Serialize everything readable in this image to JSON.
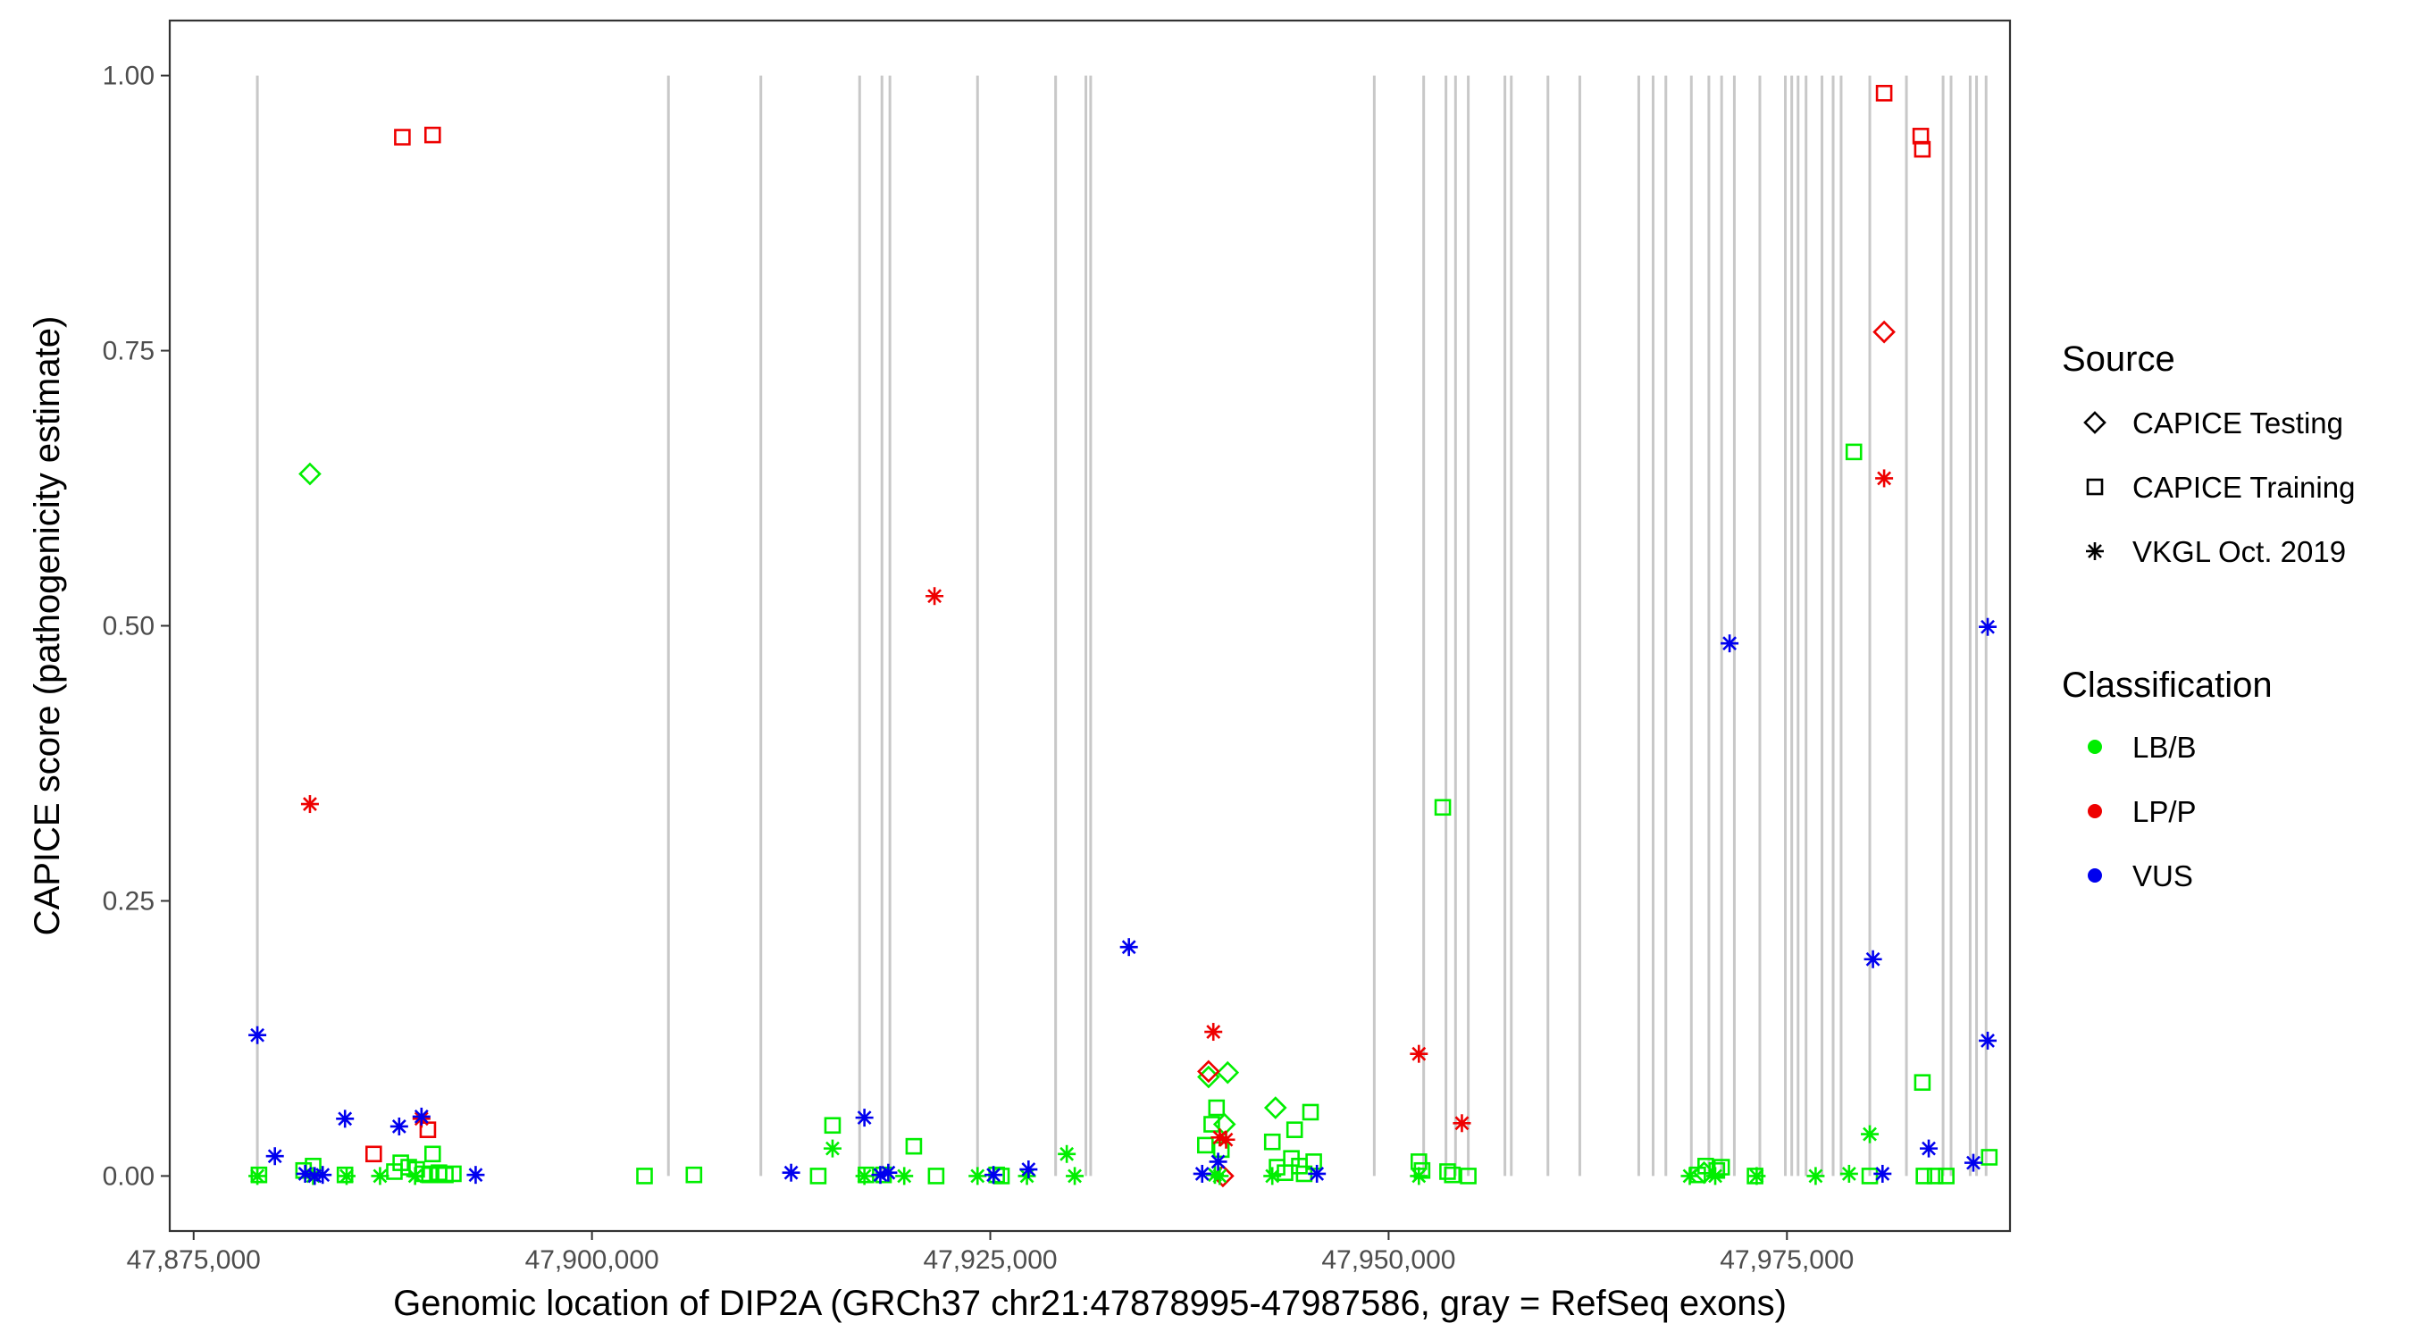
{
  "chart_data": {
    "type": "scatter",
    "title": "",
    "xlabel": "Genomic location of DIP2A (GRCh37 chr21:47878995-47987586, gray = RefSeq exons)",
    "ylabel": "CAPICE score (pathogenicity estimate)",
    "xlim": [
      47873500,
      47989000
    ],
    "ylim": [
      -0.05,
      1.05
    ],
    "x_ticks": [
      47875000,
      47900000,
      47925000,
      47950000,
      47975000
    ],
    "x_tick_labels": [
      "47,875,000",
      "47,900,000",
      "47,925,000",
      "47,950,000",
      "47,975,000"
    ],
    "y_ticks": [
      0,
      0.25,
      0.5,
      0.75,
      1.0
    ],
    "y_tick_labels": [
      "0.00",
      "0.25",
      "0.50",
      "0.75",
      "1.00"
    ],
    "grid": false,
    "exon_color": "#c8c8c8",
    "exon_positions": [
      47879000,
      47904800,
      47910600,
      47916800,
      47918200,
      47918700,
      47924200,
      47929100,
      47931000,
      47931300,
      47949100,
      47952200,
      47953600,
      47954200,
      47955000,
      47957300,
      47957700,
      47960000,
      47962000,
      47965700,
      47966600,
      47967400,
      47969000,
      47970100,
      47970900,
      47971700,
      47973300,
      47974900,
      47975300,
      47975700,
      47976200,
      47977200,
      47977900,
      47978400,
      47980200,
      47982500,
      47984800,
      47985300,
      47986500,
      47986900,
      47987500
    ],
    "legend": {
      "position": "right",
      "source_title": "Source",
      "source_entries": [
        {
          "label": "CAPICE Testing",
          "shape": "diamond"
        },
        {
          "label": "CAPICE Training",
          "shape": "square"
        },
        {
          "label": "VKGL Oct. 2019",
          "shape": "asterisk"
        }
      ],
      "class_title": "Classification",
      "class_entries": [
        {
          "label": "LB/B",
          "color": "#00ee00"
        },
        {
          "label": "LP/P",
          "color": "#ee0000"
        },
        {
          "label": "VUS",
          "color": "#0000ee"
        }
      ]
    },
    "series": [
      {
        "name": "CAPICE Testing LB/B",
        "source": "CAPICE Testing",
        "classification": "LB/B",
        "color": "#00ee00",
        "shape": "diamond",
        "points": [
          [
            47882300,
            0.638
          ],
          [
            47939900,
            0.094
          ],
          [
            47938700,
            0.09
          ],
          [
            47939700,
            0.047
          ],
          [
            47942900,
            0.062
          ],
          [
            47969800,
            0.003
          ]
        ]
      },
      {
        "name": "CAPICE Testing LP/P",
        "source": "CAPICE Testing",
        "classification": "LP/P",
        "color": "#ee0000",
        "shape": "diamond",
        "points": [
          [
            47981100,
            0.767
          ],
          [
            47938700,
            0.095
          ],
          [
            47939600,
            0.0
          ]
        ]
      },
      {
        "name": "CAPICE Testing VUS",
        "source": "CAPICE Testing",
        "classification": "VUS",
        "color": "#0000ee",
        "shape": "diamond",
        "points": []
      },
      {
        "name": "CAPICE Training LB/B",
        "source": "CAPICE Training",
        "classification": "LB/B",
        "color": "#00ee00",
        "shape": "square",
        "points": [
          [
            47879100,
            0.001
          ],
          [
            47881900,
            0.005
          ],
          [
            47882500,
            0.009
          ],
          [
            47884500,
            0.001
          ],
          [
            47887600,
            0.004
          ],
          [
            47888000,
            0.012
          ],
          [
            47888500,
            0.008
          ],
          [
            47889000,
            0.006
          ],
          [
            47889400,
            0.002
          ],
          [
            47889800,
            0.001
          ],
          [
            47890000,
            0.02
          ],
          [
            47890400,
            0.003
          ],
          [
            47890800,
            0.001
          ],
          [
            47891300,
            0.002
          ],
          [
            47903300,
            0.0
          ],
          [
            47906400,
            0.001
          ],
          [
            47914200,
            0.0
          ],
          [
            47915100,
            0.046
          ],
          [
            47917200,
            0.001
          ],
          [
            47918300,
            0.001
          ],
          [
            47920200,
            0.027
          ],
          [
            47921600,
            0.0
          ],
          [
            47925400,
            0.001
          ],
          [
            47925700,
            0.0
          ],
          [
            47938500,
            0.028
          ],
          [
            47938900,
            0.047
          ],
          [
            47939200,
            0.062
          ],
          [
            47939500,
            0.024
          ],
          [
            47942700,
            0.031
          ],
          [
            47943000,
            0.008
          ],
          [
            47943500,
            0.003
          ],
          [
            47943900,
            0.016
          ],
          [
            47944100,
            0.042
          ],
          [
            47944400,
            0.009
          ],
          [
            47944700,
            0.002
          ],
          [
            47945100,
            0.058
          ],
          [
            47945300,
            0.013
          ],
          [
            47951900,
            0.013
          ],
          [
            47952100,
            0.005
          ],
          [
            47953400,
            0.335
          ],
          [
            47953700,
            0.004
          ],
          [
            47954000,
            0.001
          ],
          [
            47955000,
            0.0
          ],
          [
            47969400,
            0.001
          ],
          [
            47969900,
            0.009
          ],
          [
            47970600,
            0.005
          ],
          [
            47970900,
            0.008
          ],
          [
            47973000,
            0.0
          ],
          [
            47979200,
            0.658
          ],
          [
            47980200,
            0.0
          ],
          [
            47983500,
            0.085
          ],
          [
            47983600,
            0.0
          ],
          [
            47984300,
            0.0
          ],
          [
            47985000,
            0.0
          ],
          [
            47987700,
            0.017
          ]
        ]
      },
      {
        "name": "CAPICE Training LP/P",
        "source": "CAPICE Training",
        "classification": "LP/P",
        "color": "#ee0000",
        "shape": "square",
        "points": [
          [
            47888100,
            0.944
          ],
          [
            47890000,
            0.946
          ],
          [
            47886300,
            0.02
          ],
          [
            47889700,
            0.042
          ],
          [
            47981100,
            0.984
          ],
          [
            47983400,
            0.945
          ],
          [
            47983500,
            0.933
          ]
        ]
      },
      {
        "name": "CAPICE Training VUS",
        "source": "CAPICE Training",
        "classification": "VUS",
        "color": "#0000ee",
        "shape": "square",
        "points": []
      },
      {
        "name": "VKGL Oct. 2019 LB/B",
        "source": "VKGL Oct. 2019",
        "classification": "LB/B",
        "color": "#00ee00",
        "shape": "asterisk",
        "points": [
          [
            47879000,
            0.0
          ],
          [
            47882500,
            0.0
          ],
          [
            47884600,
            0.0
          ],
          [
            47886700,
            0.0
          ],
          [
            47888900,
            0.0
          ],
          [
            47915100,
            0.025
          ],
          [
            47917100,
            0.0
          ],
          [
            47919600,
            0.0
          ],
          [
            47924200,
            0.0
          ],
          [
            47927300,
            0.0
          ],
          [
            47929800,
            0.02
          ],
          [
            47930300,
            0.0
          ],
          [
            47939100,
            0.001
          ],
          [
            47939400,
            0.0
          ],
          [
            47942700,
            0.0
          ],
          [
            47951900,
            0.0
          ],
          [
            47968900,
            0.0
          ],
          [
            47970500,
            0.0
          ],
          [
            47973100,
            0.0
          ],
          [
            47976800,
            0.0
          ],
          [
            47978900,
            0.002
          ],
          [
            47980200,
            0.038
          ]
        ]
      },
      {
        "name": "VKGL Oct. 2019 LP/P",
        "source": "VKGL Oct. 2019",
        "classification": "LP/P",
        "color": "#ee0000",
        "shape": "asterisk",
        "points": [
          [
            47882300,
            0.338
          ],
          [
            47889300,
            0.052
          ],
          [
            47921500,
            0.527
          ],
          [
            47939000,
            0.131
          ],
          [
            47939400,
            0.035
          ],
          [
            47939800,
            0.033
          ],
          [
            47951900,
            0.111
          ],
          [
            47954600,
            0.048
          ],
          [
            47981100,
            0.634
          ]
        ]
      },
      {
        "name": "VKGL Oct. 2019 VUS",
        "source": "VKGL Oct. 2019",
        "classification": "VUS",
        "color": "#0000ee",
        "shape": "asterisk",
        "points": [
          [
            47879000,
            0.128
          ],
          [
            47880100,
            0.018
          ],
          [
            47882000,
            0.002
          ],
          [
            47882600,
            0.0
          ],
          [
            47883100,
            0.001
          ],
          [
            47884500,
            0.052
          ],
          [
            47887900,
            0.045
          ],
          [
            47889300,
            0.054
          ],
          [
            47892700,
            0.001
          ],
          [
            47912500,
            0.003
          ],
          [
            47917100,
            0.053
          ],
          [
            47918100,
            0.001
          ],
          [
            47918600,
            0.003
          ],
          [
            47925200,
            0.001
          ],
          [
            47927400,
            0.006
          ],
          [
            47933700,
            0.208
          ],
          [
            47938300,
            0.002
          ],
          [
            47939300,
            0.013
          ],
          [
            47945500,
            0.002
          ],
          [
            47971400,
            0.484
          ],
          [
            47980400,
            0.197
          ],
          [
            47981000,
            0.002
          ],
          [
            47983900,
            0.025
          ],
          [
            47986700,
            0.012
          ],
          [
            47987600,
            0.499
          ],
          [
            47987600,
            0.123
          ]
        ]
      }
    ]
  }
}
